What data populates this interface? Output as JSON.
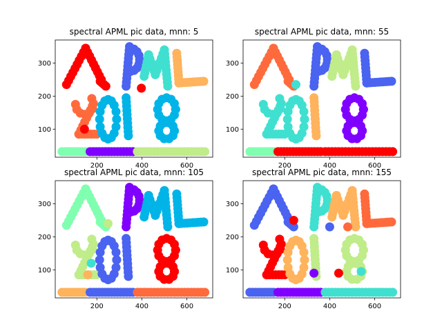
{
  "chart_data": [
    {
      "type": "scatter",
      "title": "spectral APML pic data, mnn: 5",
      "xlim": [
        15,
        715
      ],
      "ylim": [
        15,
        370
      ],
      "xticks": [
        200,
        400,
        600
      ],
      "yticks": [
        100,
        200,
        300
      ],
      "tick_labels_x": [
        "200",
        "400",
        "600"
      ],
      "tick_labels_y": [
        "100",
        "200",
        "300"
      ],
      "marker": "o",
      "colors": {
        "A": "#ff0000",
        "P": "#4a63f0",
        "M": "#40e0d0",
        "L": "#ffb35c",
        "d2": "#ff6a3d",
        "d0": "#00b4e8",
        "d1": "#00b4e8",
        "d8": "#00b4e8",
        "bar_left": "#80ffb0",
        "bar_mid": "#8000ff",
        "bar_right": "#c0ec8a"
      },
      "extra_marks": [
        {
          "x": 398,
          "y": 224,
          "color": "#ff0000"
        },
        {
          "x": 145,
          "y": 100,
          "color": "#ff0000"
        }
      ]
    },
    {
      "type": "scatter",
      "title": "spectral APML pic data, mnn: 55",
      "xlim": [
        15,
        715
      ],
      "ylim": [
        15,
        370
      ],
      "xticks": [
        200,
        400,
        600
      ],
      "yticks": [
        100,
        200,
        300
      ],
      "tick_labels_x": [
        "200",
        "400",
        "600"
      ],
      "tick_labels_y": [
        "100",
        "200",
        "300"
      ],
      "marker": "o",
      "colors": {
        "A": "#ff6a3d",
        "P": "#4a63f0",
        "M": "#c0ec8a",
        "L": "#4a63f0",
        "d2": "#40e0d0",
        "d0": "#40e0d0",
        "d1": "#ffb35c",
        "d8": "#8000ff",
        "bar_left": "#80ffb0",
        "bar_mid": "#ff0000",
        "bar_right": "#ff0000"
      },
      "extra_marks": [
        {
          "x": 250,
          "y": 235,
          "color": "#40e0d0"
        }
      ]
    },
    {
      "type": "scatter",
      "title": "spectral APML pic data, mnn: 105",
      "xlim": [
        15,
        715
      ],
      "ylim": [
        15,
        370
      ],
      "xticks": [
        200,
        400,
        600
      ],
      "yticks": [
        100,
        200,
        300
      ],
      "tick_labels_x": [
        "200",
        "400",
        "600"
      ],
      "tick_labels_y": [
        "100",
        "200",
        "300"
      ],
      "marker": "o",
      "colors": {
        "A": "#80ffb0",
        "P": "#8000ff",
        "M": "#00b4e8",
        "L": "#00b4e8",
        "d2": "#c0ec8a",
        "d0": "#4a63f0",
        "d1": "#4a63f0",
        "d8": "#ff0000",
        "bar_left": "#ffb35c",
        "bar_mid": "#4a63f0",
        "bar_right": "#ff6a3d"
      },
      "extra_marks": [
        {
          "x": 250,
          "y": 240,
          "color": "#c0ec8a"
        },
        {
          "x": 175,
          "y": 120,
          "color": "#40e0d0"
        },
        {
          "x": 160,
          "y": 85,
          "color": "#ffb35c"
        }
      ]
    },
    {
      "type": "scatter",
      "title": "spectral APML pic data, mnn: 155",
      "xlim": [
        15,
        715
      ],
      "ylim": [
        15,
        370
      ],
      "xticks": [
        200,
        400,
        600
      ],
      "yticks": [
        100,
        200,
        300
      ],
      "tick_labels_x": [
        "200",
        "400",
        "600"
      ],
      "tick_labels_y": [
        "100",
        "200",
        "300"
      ],
      "marker": "o",
      "colors": {
        "A": "#4a63f0",
        "P": "#40e0d0",
        "M": "#ffb35c",
        "L": "#ff6a3d",
        "d2": "#ff0000",
        "d0": "#ffb35c",
        "d1": "#c0ec8a",
        "d8": "#c0ec8a",
        "bar_left": "#4a63f0",
        "bar_mid": "#8000ff",
        "bar_right": "#40e0d0"
      },
      "extra_marks": [
        {
          "x": 240,
          "y": 250,
          "color": "#ff0000"
        },
        {
          "x": 400,
          "y": 230,
          "color": "#4a63f0"
        },
        {
          "x": 480,
          "y": 230,
          "color": "#ff6a3d"
        },
        {
          "x": 330,
          "y": 90,
          "color": "#8000ff"
        },
        {
          "x": 540,
          "y": 95,
          "color": "#40e0d0"
        },
        {
          "x": 440,
          "y": 90,
          "color": "#ff0000"
        }
      ]
    }
  ]
}
